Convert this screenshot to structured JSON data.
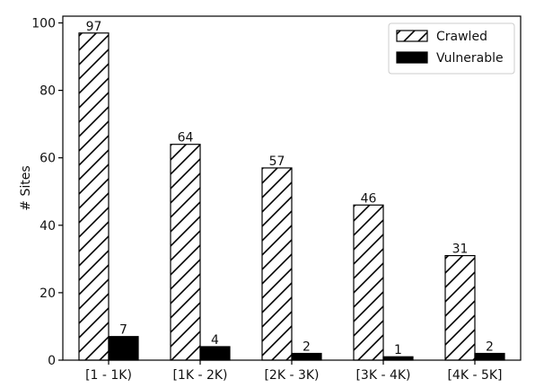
{
  "chart_data": {
    "type": "bar",
    "title": "",
    "xlabel": "",
    "ylabel": "# Sites",
    "ylim": [
      0,
      102
    ],
    "yticks": [
      0,
      20,
      40,
      60,
      80,
      100
    ],
    "grid": false,
    "legend_position": "top-right",
    "categories": [
      "[1 - 1K)",
      "[1K - 2K)",
      "[2K - 3K)",
      "[3K - 4K)",
      "[4K - 5K]"
    ],
    "series": [
      {
        "name": "Crawled",
        "values": [
          97,
          64,
          57,
          46,
          31
        ],
        "fill": "hatched",
        "color": "#ffffff",
        "edge_color": "#000000"
      },
      {
        "name": "Vulnerable",
        "values": [
          7,
          4,
          2,
          1,
          2
        ],
        "fill": "solid",
        "color": "#000000",
        "edge_color": "#000000"
      }
    ]
  }
}
